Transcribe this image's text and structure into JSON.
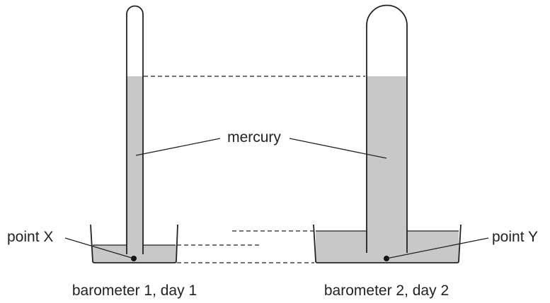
{
  "labels": {
    "mercury": "mercury",
    "point_x": "point X",
    "point_y": "point Y",
    "caption_1": "barometer 1, day 1",
    "caption_2": "barometer 2, day 2"
  },
  "colors": {
    "mercury_fill": "#c8c8c8",
    "outline": "#222222"
  }
}
